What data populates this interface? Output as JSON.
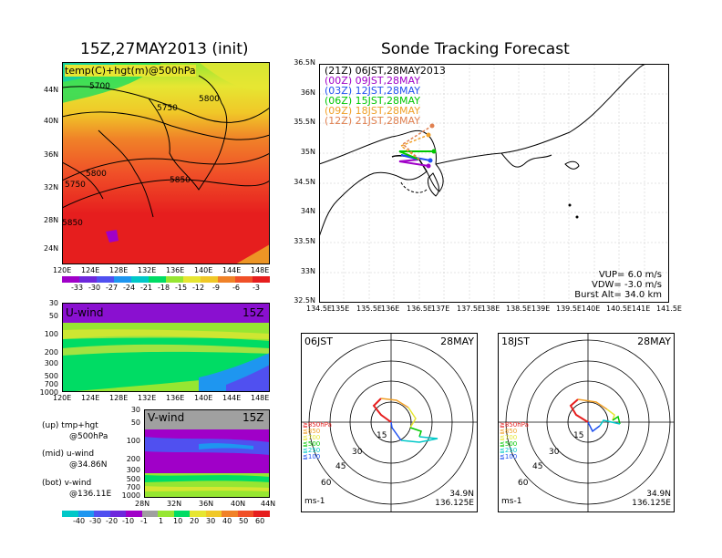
{
  "left_title": "15Z,27MAY2013 (init)",
  "right_title": "Sonde Tracking Forecast",
  "map_panel": {
    "label": "temp(C)+hgt(m)@500hPa",
    "lat_ticks": [
      "44N",
      "40N",
      "36N",
      "32N",
      "28N",
      "24N"
    ],
    "lon_ticks": [
      "120E",
      "124E",
      "128E",
      "132E",
      "136E",
      "140E",
      "144E",
      "148E"
    ],
    "contour_labels": [
      "5700",
      "5750",
      "5800",
      "5800",
      "5850",
      "5750",
      "5850"
    ]
  },
  "temp_colorbar": {
    "labels": [
      "-33",
      "-30",
      "-27",
      "-24",
      "-21",
      "-18",
      "-15",
      "-12",
      "-9",
      "-6",
      "-3"
    ],
    "colors": [
      "#a000c8",
      "#6e28dc",
      "#5050f0",
      "#1e96f0",
      "#00c8c8",
      "#00dc64",
      "#96e632",
      "#e6e632",
      "#f0c828",
      "#f08228",
      "#f05028",
      "#e61e1e"
    ]
  },
  "uwind_panel": {
    "label": "U-wind",
    "time": "15Z",
    "p_ticks": [
      "30",
      "50",
      "100",
      "200",
      "300",
      "500",
      "700",
      "1000"
    ],
    "lon_ticks": [
      "120E",
      "124E",
      "128E",
      "132E",
      "136E",
      "140E",
      "144E",
      "148E"
    ]
  },
  "vwind_panel": {
    "label": "V-wind",
    "time": "15Z",
    "p_ticks": [
      "30",
      "50",
      "100",
      "200",
      "300",
      "500",
      "700",
      "1000"
    ],
    "lat_ticks": [
      "28N",
      "32N",
      "36N",
      "40N",
      "44N"
    ]
  },
  "notes": [
    {
      "line1": "(up) tmp+hgt",
      "line2": "@500hPa"
    },
    {
      "line1": "(mid) u-wind",
      "line2": "@34.86N"
    },
    {
      "line1": "(bot) v-wind",
      "line2": "@136.11E"
    }
  ],
  "wind_colorbar": {
    "labels": [
      "-40",
      "-30",
      "-20",
      "-10",
      "-1",
      "1",
      "10",
      "20",
      "30",
      "40",
      "50",
      "60"
    ],
    "colors": [
      "#00c8c8",
      "#1e96f0",
      "#5050f0",
      "#6e28dc",
      "#a000c8",
      "#a0a0a0",
      "#96e632",
      "#00dc64",
      "#e6e632",
      "#f0c828",
      "#f08228",
      "#f05028",
      "#e61e1e"
    ]
  },
  "tracking": {
    "lat_ticks": [
      "36.5N",
      "36N",
      "35.5N",
      "35N",
      "34.5N",
      "34N",
      "33.5N",
      "33N",
      "32.5N"
    ],
    "lon_ticks": [
      "134.5E",
      "135E",
      "135.5E",
      "136E",
      "136.5E",
      "137E",
      "137.5E",
      "138E",
      "138.5E",
      "139E",
      "139.5E",
      "140E",
      "140.5E",
      "141E",
      "141.5E"
    ],
    "legend": [
      {
        "label": "(21Z)  06JST,28MAY2013",
        "color": "#000000"
      },
      {
        "label": "(00Z)  09JST,28MAY",
        "color": "#a000c8"
      },
      {
        "label": "(03Z)  12JST,28MAY",
        "color": "#1e50f0"
      },
      {
        "label": "(06Z)  15JST,28MAY",
        "color": "#00c800"
      },
      {
        "label": "(09Z)  18JST,28MAY",
        "color": "#f0a028"
      },
      {
        "label": "(12Z)  21JST,28MAY",
        "color": "#e08050"
      }
    ],
    "vup": "VUP=  6.0  m/s",
    "vdw": "VDW= -3.0  m/s",
    "burst": "Burst Alt=  34.0  km"
  },
  "hodographs": [
    {
      "time": "06JST",
      "date": "28MAY",
      "rings": [
        "15",
        "30",
        "45",
        "60"
      ],
      "unit": "ms-1",
      "lat": "34.9N",
      "lon": "136.125E",
      "levels": [
        {
          "label": "≧850hPa",
          "color": "#e61e1e"
        },
        {
          "label": "≦850",
          "color": "#f0a028"
        },
        {
          "label": "≦700",
          "color": "#e6e632"
        },
        {
          "label": "≦500",
          "color": "#00c800"
        },
        {
          "label": "≦250",
          "color": "#00c8c8"
        },
        {
          "label": "≦100",
          "color": "#1e50f0"
        }
      ]
    },
    {
      "time": "18JST",
      "date": "28MAY",
      "rings": [
        "15",
        "30",
        "45",
        "60"
      ],
      "unit": "ms-1",
      "lat": "34.9N",
      "lon": "136.125E",
      "levels": [
        {
          "label": "≧850hPa",
          "color": "#e61e1e"
        },
        {
          "label": "≦850",
          "color": "#f0a028"
        },
        {
          "label": "≦700",
          "color": "#e6e632"
        },
        {
          "label": "≦500",
          "color": "#00c800"
        },
        {
          "label": "≦250",
          "color": "#00c8c8"
        },
        {
          "label": "≦100",
          "color": "#1e50f0"
        }
      ]
    }
  ]
}
